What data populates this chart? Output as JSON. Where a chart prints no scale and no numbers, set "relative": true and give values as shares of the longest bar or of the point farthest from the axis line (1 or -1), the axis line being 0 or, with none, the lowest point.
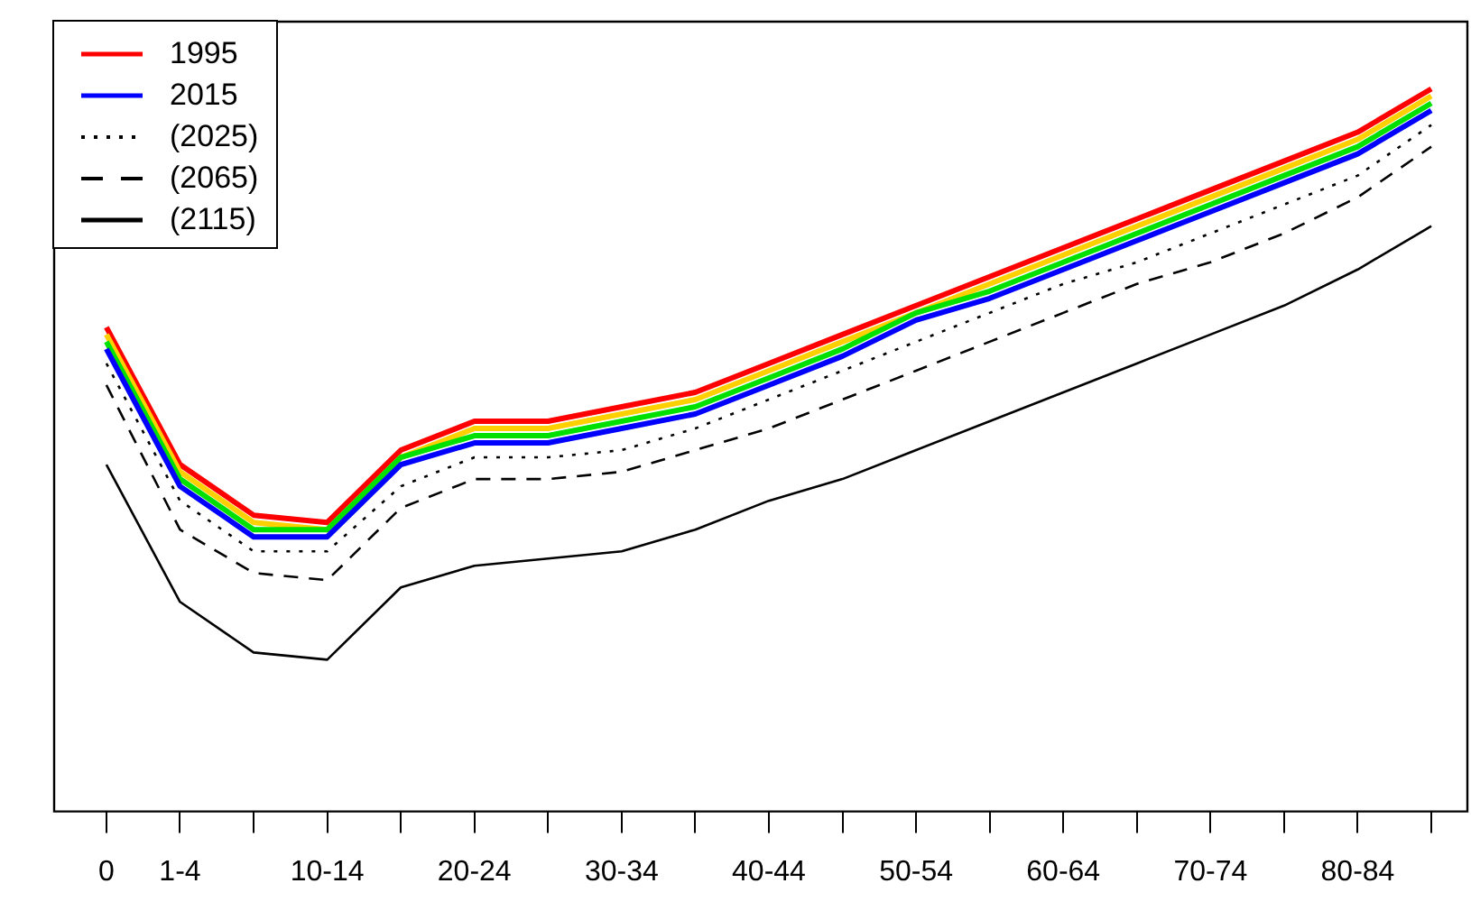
{
  "chart_data": {
    "type": "line",
    "relative": true,
    "legend": "top left",
    "categories": [
      "0",
      "1-4",
      null,
      "10-14",
      null,
      "20-24",
      null,
      "30-34",
      null,
      "40-44",
      null,
      "50-54",
      null,
      "60-64",
      null,
      "70-74",
      null,
      "80-84",
      null
    ],
    "series": [
      {
        "name": "1995",
        "color": "#ff0000",
        "line_style": "solid",
        "values": [
          0.67,
          0.48,
          0.41,
          0.4,
          0.5,
          0.54,
          0.54,
          0.56,
          0.58,
          0.62,
          0.66,
          0.7,
          0.74,
          0.78,
          0.82,
          0.86,
          0.9,
          0.94,
          1.0
        ]
      },
      {
        "color": "#ffd000",
        "line_style": "solid",
        "values": [
          0.66,
          0.47,
          0.4,
          0.39,
          0.49,
          0.53,
          0.53,
          0.55,
          0.57,
          0.61,
          0.65,
          0.69,
          0.73,
          0.77,
          0.81,
          0.85,
          0.89,
          0.93,
          0.99
        ]
      },
      {
        "color": "#00e000",
        "line_style": "solid",
        "values": [
          0.65,
          0.46,
          0.39,
          0.39,
          0.49,
          0.52,
          0.52,
          0.54,
          0.56,
          0.6,
          0.64,
          0.69,
          0.72,
          0.76,
          0.8,
          0.84,
          0.88,
          0.92,
          0.98
        ]
      },
      {
        "name": "2015",
        "color": "#0000ff",
        "line_style": "solid",
        "values": [
          0.64,
          0.45,
          0.38,
          0.38,
          0.48,
          0.51,
          0.51,
          0.53,
          0.55,
          0.59,
          0.63,
          0.68,
          0.71,
          0.75,
          0.79,
          0.83,
          0.87,
          0.91,
          0.97
        ]
      },
      {
        "name": "(2025)",
        "color": "#000000",
        "line_style": "dotted",
        "values": [
          0.62,
          0.43,
          0.36,
          0.36,
          0.45,
          0.49,
          0.49,
          0.5,
          0.53,
          0.57,
          0.61,
          0.65,
          0.69,
          0.73,
          0.76,
          0.8,
          0.84,
          0.88,
          0.95
        ]
      },
      {
        "name": "(2065)",
        "color": "#000000",
        "line_style": "dashed",
        "values": [
          0.59,
          0.39,
          0.33,
          0.32,
          0.42,
          0.46,
          0.46,
          0.47,
          0.5,
          0.53,
          0.57,
          0.61,
          0.65,
          0.69,
          0.73,
          0.76,
          0.8,
          0.85,
          0.92
        ]
      },
      {
        "name": "(2115)",
        "color": "#000000",
        "line_style": "solid",
        "values": [
          0.48,
          0.29,
          0.22,
          0.21,
          0.31,
          0.34,
          0.35,
          0.36,
          0.39,
          0.43,
          0.46,
          0.5,
          0.54,
          0.58,
          0.62,
          0.66,
          0.7,
          0.75,
          0.81
        ]
      }
    ]
  }
}
